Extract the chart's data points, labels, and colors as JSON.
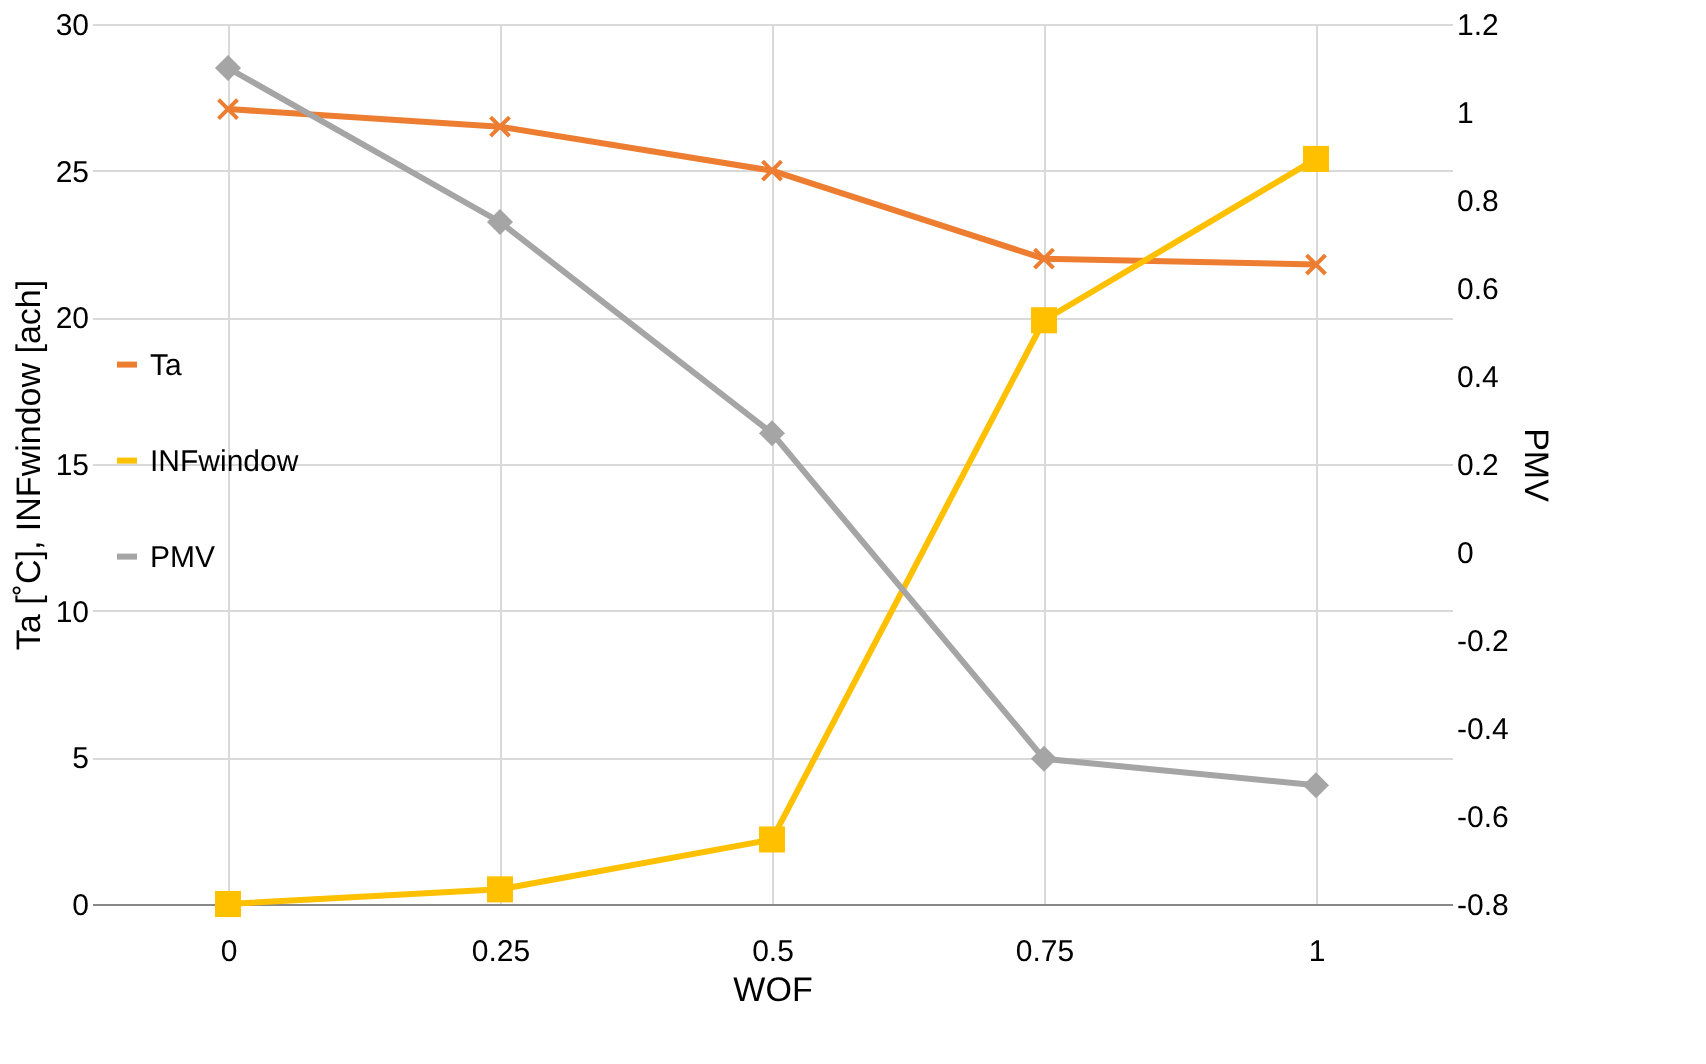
{
  "chart_data": {
    "type": "line",
    "categories": [
      "0",
      "0.25",
      "0.5",
      "0.75",
      "1"
    ],
    "xlabel": "WOF",
    "ylabel": "Ta [˚C], INFwindow [ach]",
    "y2label": "PMV",
    "ylim": [
      0,
      30
    ],
    "yticks": [
      0,
      5,
      10,
      15,
      20,
      25,
      30
    ],
    "y2lim": [
      -0.8,
      1.2
    ],
    "y2ticks": [
      -0.8,
      -0.6,
      -0.4,
      -0.2,
      0,
      0.2,
      0.4,
      0.6,
      0.8,
      1,
      1.2
    ],
    "grid": true,
    "legend": "left",
    "line_style": "solid",
    "series": [
      {
        "name": "Ta",
        "color": "#ed7d31",
        "marker": "cross",
        "values": [
          27.1,
          26.5,
          25.0,
          22.0,
          21.8
        ]
      },
      {
        "name": "INFwindow",
        "color": "#ffc000",
        "marker": "square",
        "values": [
          0.0,
          0.5,
          2.2,
          19.9,
          25.4
        ]
      },
      {
        "name": "PMV",
        "color": "#a5a5a5",
        "marker": "diamond",
        "axis": "y2",
        "values": [
          1.1,
          0.75,
          0.27,
          -0.47,
          -0.53
        ]
      }
    ]
  }
}
